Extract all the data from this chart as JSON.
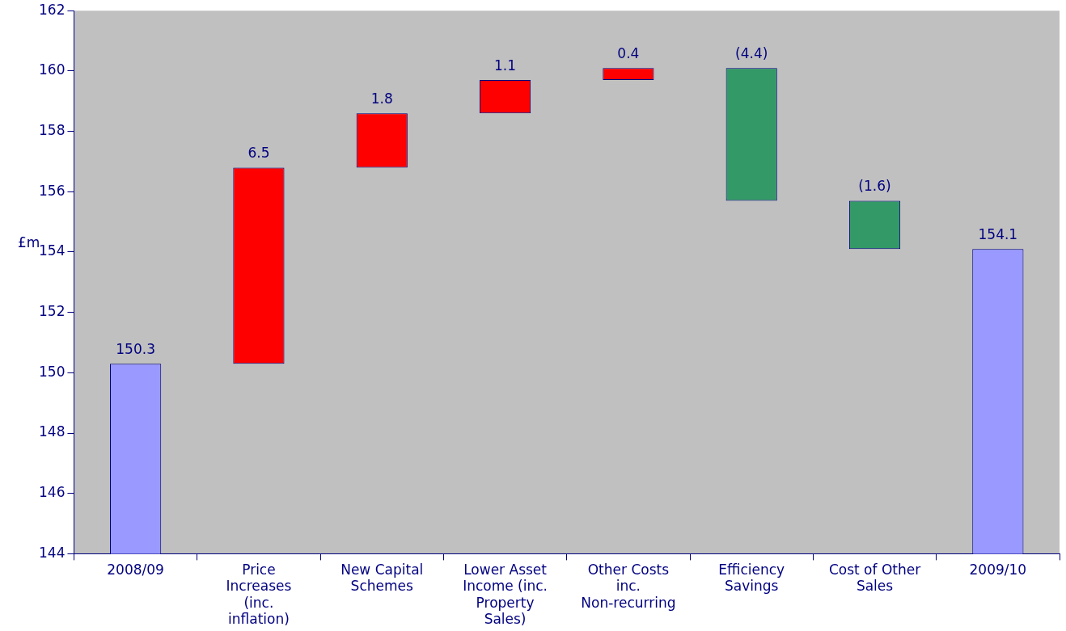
{
  "chart_data": {
    "type": "bar",
    "ylabel": "£m",
    "categories": [
      "2008/09",
      "Price Increases (inc. inflation)",
      "New Capital Schemes",
      "Lower Asset Income (inc. Property Sales)",
      "Other Costs inc. Non-recurring",
      "Efficiency Savings",
      "Cost of Other Sales",
      "2009/10"
    ],
    "values": [
      150.3,
      6.5,
      1.8,
      1.1,
      0.4,
      -4.4,
      -1.6,
      154.1
    ],
    "base": [
      null,
      150.3,
      156.8,
      158.6,
      159.7,
      160.1,
      155.7,
      null
    ],
    "colors": [
      "#9999ff",
      "#ff0000",
      "#ff0000",
      "#ff0000",
      "#ff0000",
      "#339966",
      "#339966",
      "#9999ff"
    ],
    "value_labels": [
      "150.3",
      "6.5",
      "1.8",
      "1.1",
      "0.4",
      "(4.4)",
      "(1.6)",
      "154.1"
    ],
    "ylim": [
      144,
      162
    ],
    "yticks": [
      144,
      146,
      148,
      150,
      152,
      154,
      156,
      158,
      160,
      162
    ],
    "grid": false,
    "legend": false
  }
}
